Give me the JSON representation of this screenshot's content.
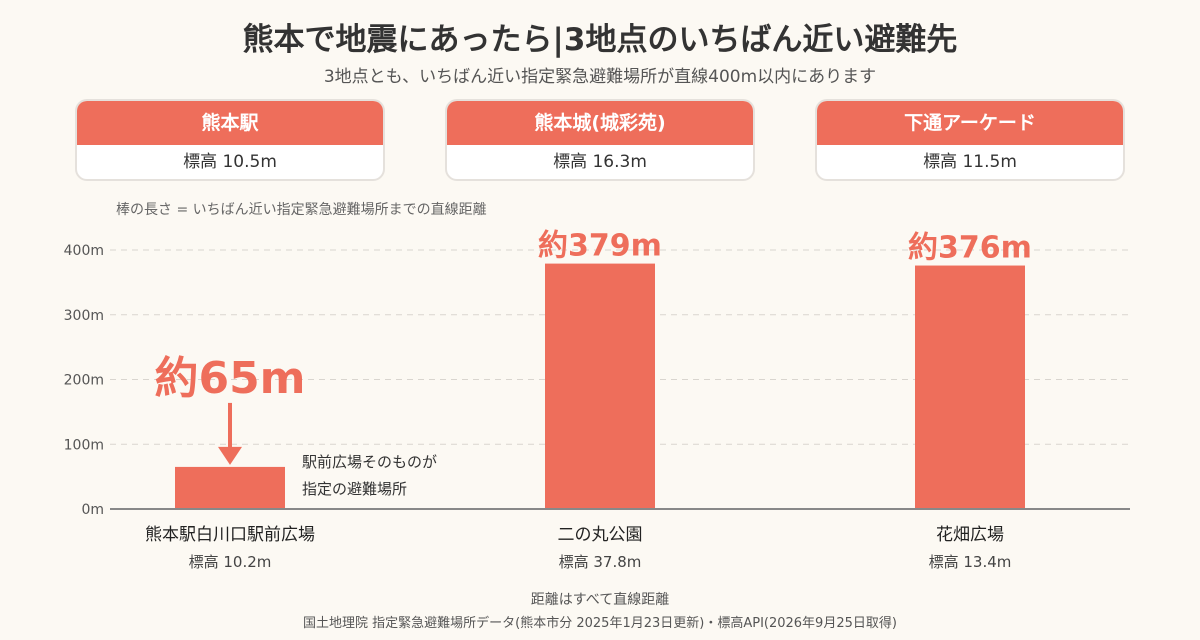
{
  "title": "熊本で地震にあったら|3地点のいちばん近い避難先",
  "subtitle": "3地点とも、いちばん近い指定緊急避難場所が直線400m以内にあります",
  "cards": [
    {
      "name": "熊本駅",
      "elevation": "標高 10.5m"
    },
    {
      "name": "熊本城(城彩苑)",
      "elevation": "標高 16.3m"
    },
    {
      "name": "下通アーケード",
      "elevation": "標高 11.5m"
    }
  ],
  "note": "棒の長さ = いちばん近い指定緊急避難場所までの直線距離",
  "chart_data": {
    "type": "bar",
    "categories": [
      "熊本駅白川口駅前広場",
      "二の丸公園",
      "花畑広場"
    ],
    "category_elevations": [
      "標高 10.2m",
      "標高 37.8m",
      "標高 13.4m"
    ],
    "values": [
      65,
      379,
      376
    ],
    "data_labels": [
      "約65m",
      "約379m",
      "約376m"
    ],
    "ylim": [
      0,
      400
    ],
    "yticks": [
      0,
      100,
      200,
      300,
      400
    ],
    "ytick_labels": [
      "0m",
      "100m",
      "200m",
      "300m",
      "400m"
    ],
    "grid": true,
    "bar_color": "#ee6e5b",
    "annotation": [
      "駅前広場そのものが",
      "指定の避難場所"
    ]
  },
  "footer": {
    "line1": "距離はすべて直線距離",
    "line2": "国土地理院 指定緊急避難場所データ(熊本市分 2025年1月23日更新)・標高API(2026年9月25日取得)"
  }
}
